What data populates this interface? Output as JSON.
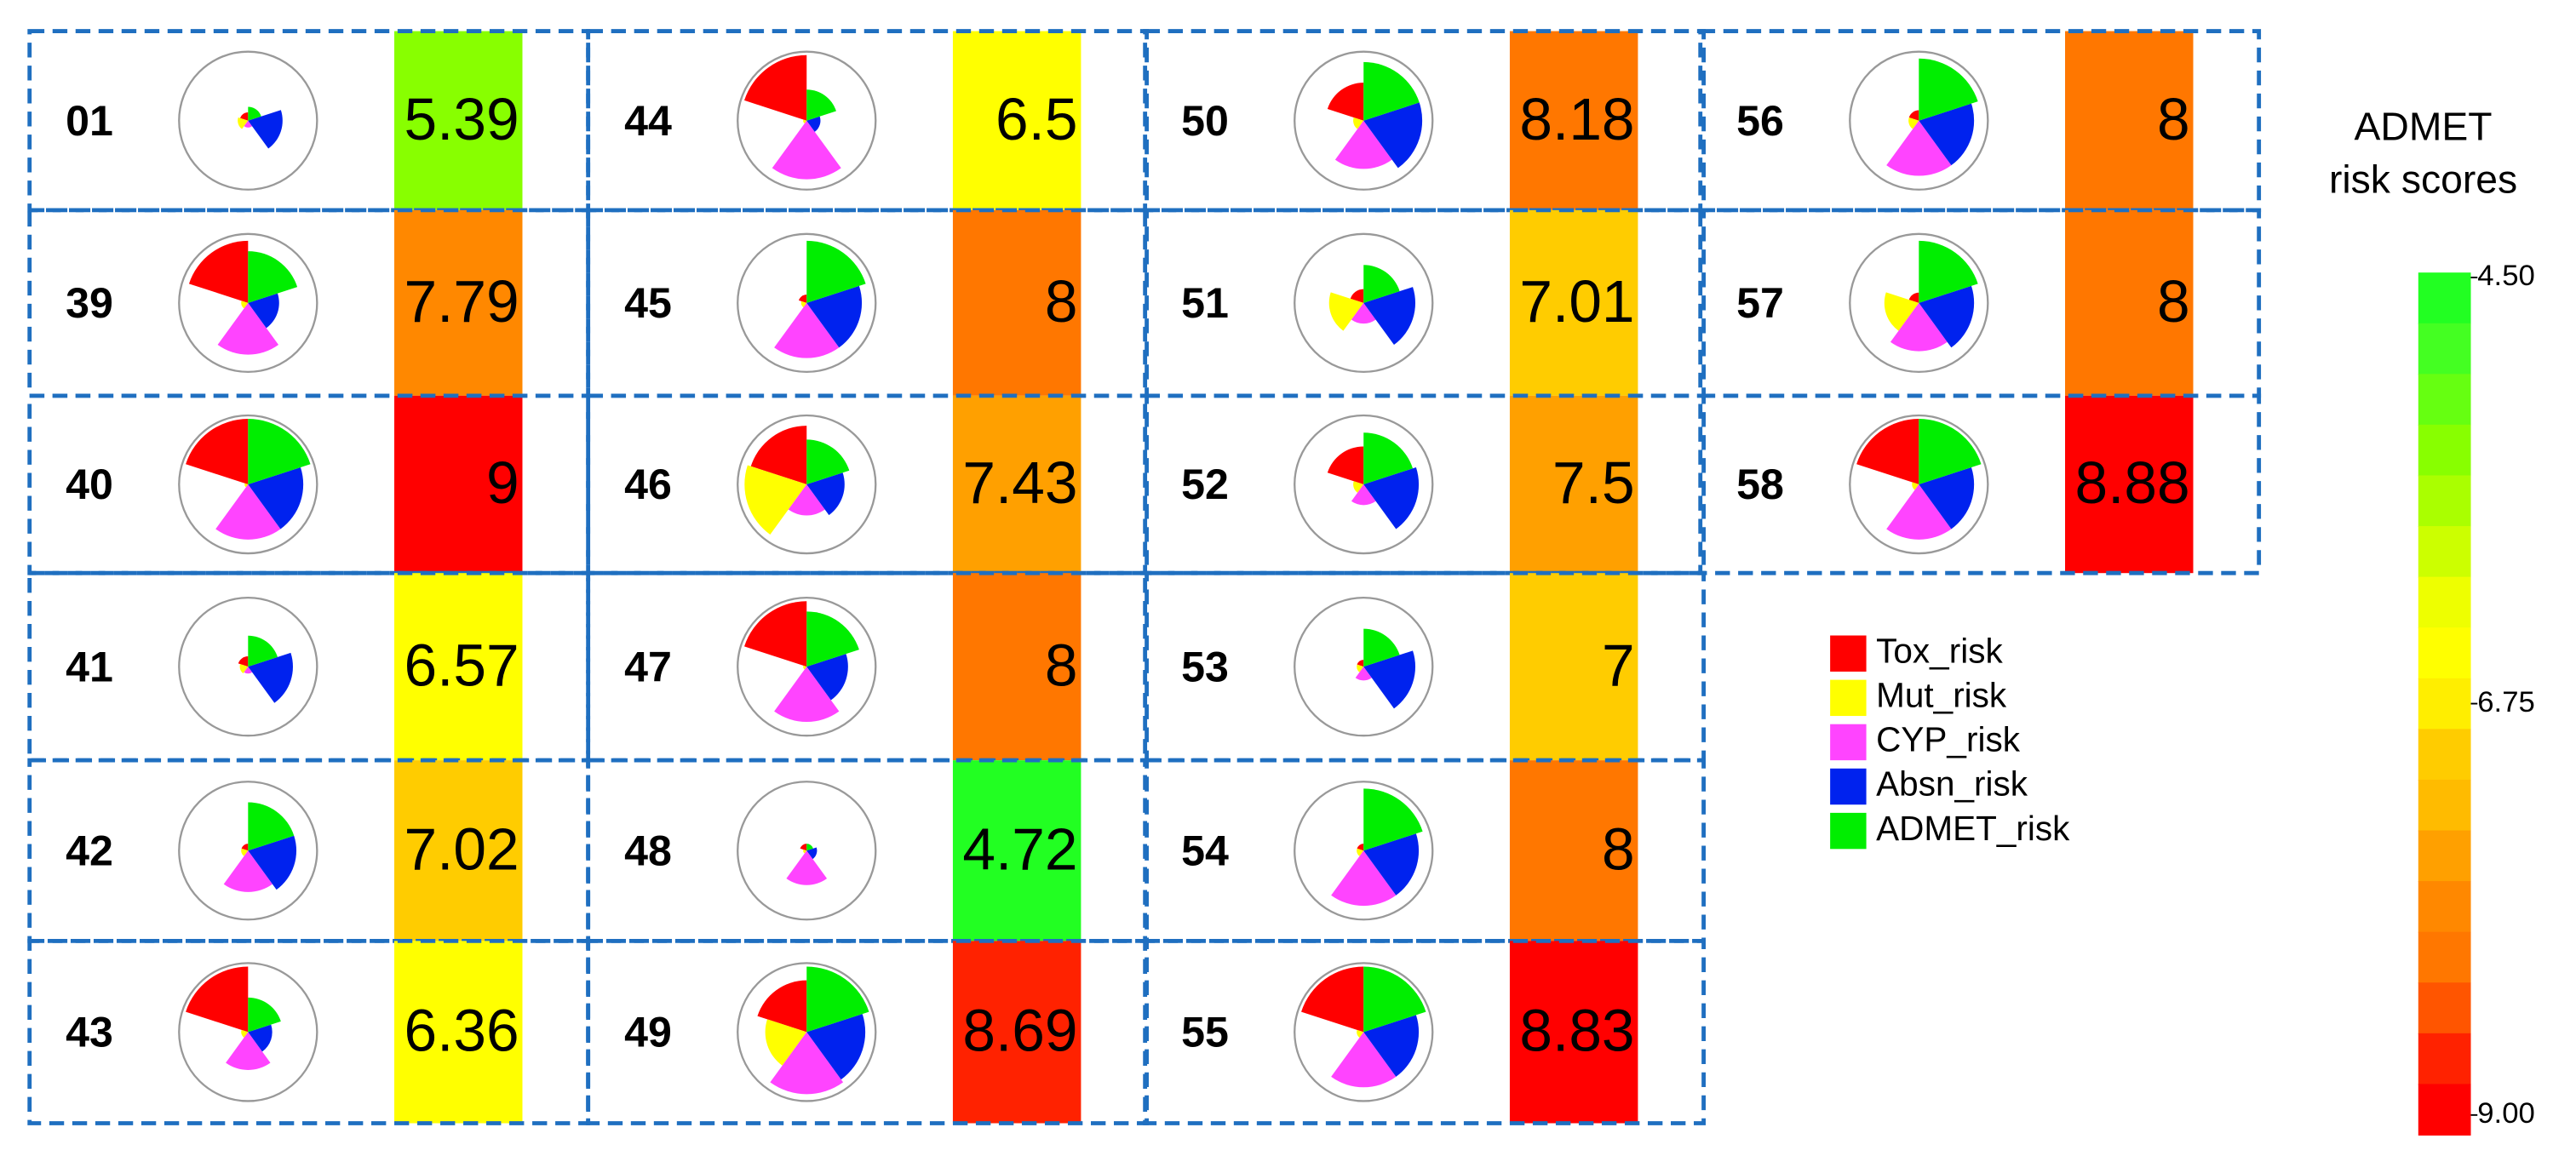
{
  "compounds": [
    {
      "id": "01",
      "score": 5.39,
      "risks": [
        0.12,
        0.15,
        0.1,
        0.5,
        0.2
      ]
    },
    {
      "id": "39",
      "score": 7.79,
      "risks": [
        0.9,
        0.1,
        0.75,
        0.45,
        0.75
      ]
    },
    {
      "id": "40",
      "score": 9,
      "risks": [
        0.95,
        0.05,
        0.8,
        0.8,
        0.95
      ]
    },
    {
      "id": "41",
      "score": 6.57,
      "risks": [
        0.15,
        0.12,
        0.1,
        0.65,
        0.45
      ]
    },
    {
      "id": "42",
      "score": 7.02,
      "risks": [
        0.1,
        0.1,
        0.6,
        0.7,
        0.7
      ]
    },
    {
      "id": "43",
      "score": 6.36,
      "risks": [
        0.95,
        0.1,
        0.55,
        0.35,
        0.5
      ]
    },
    {
      "id": "44",
      "score": 6.5,
      "risks": [
        0.95,
        0.05,
        0.85,
        0.2,
        0.45
      ]
    },
    {
      "id": "45",
      "score": 8,
      "risks": [
        0.12,
        0.08,
        0.8,
        0.8,
        0.9
      ]
    },
    {
      "id": "46",
      "score": 7.43,
      "risks": [
        0.85,
        0.9,
        0.45,
        0.55,
        0.65
      ]
    },
    {
      "id": "47",
      "score": 8,
      "risks": [
        0.95,
        0.05,
        0.8,
        0.6,
        0.8
      ]
    },
    {
      "id": "48",
      "score": 4.72,
      "risks": [
        0.1,
        0.05,
        0.5,
        0.15,
        0.1
      ]
    },
    {
      "id": "49",
      "score": 8.69,
      "risks": [
        0.75,
        0.6,
        0.9,
        0.85,
        0.95
      ]
    },
    {
      "id": "50",
      "score": 8.18,
      "risks": [
        0.55,
        0.15,
        0.7,
        0.85,
        0.85
      ]
    },
    {
      "id": "51",
      "score": 7.01,
      "risks": [
        0.2,
        0.5,
        0.3,
        0.75,
        0.55
      ]
    },
    {
      "id": "52",
      "score": 7.5,
      "risks": [
        0.55,
        0.15,
        0.3,
        0.8,
        0.75
      ]
    },
    {
      "id": "53",
      "score": 7,
      "risks": [
        0.1,
        0.1,
        0.2,
        0.75,
        0.55
      ]
    },
    {
      "id": "54",
      "score": 8,
      "risks": [
        0.1,
        0.1,
        0.8,
        0.8,
        0.9
      ]
    },
    {
      "id": "55",
      "score": 8.83,
      "risks": [
        0.95,
        0.1,
        0.8,
        0.8,
        0.95
      ]
    },
    {
      "id": "56",
      "score": 8,
      "risks": [
        0.15,
        0.15,
        0.8,
        0.8,
        0.9
      ]
    },
    {
      "id": "57",
      "score": 8,
      "risks": [
        0.15,
        0.5,
        0.7,
        0.8,
        0.9
      ]
    },
    {
      "id": "58",
      "score": 8.88,
      "risks": [
        0.95,
        0.1,
        0.8,
        0.8,
        0.95
      ]
    }
  ],
  "rlim": [
    0,
    1
  ],
  "risk_types": [
    {
      "name": "Tox_risk",
      "color": "#ff0000"
    },
    {
      "name": "Mut_risk",
      "color": "#ffff00"
    },
    {
      "name": "CYP_risk",
      "color": "#ff44ff"
    },
    {
      "name": "Absn_risk",
      "color": "#0022ee"
    },
    {
      "name": "ADMET_risk",
      "color": "#00ee00"
    }
  ],
  "colorbar": {
    "title": [
      "ADMET",
      "risk scores"
    ],
    "lim": [
      4.5,
      9
    ],
    "ticks": [
      {
        "value": 4.5,
        "label": "4.50"
      },
      {
        "value": 6.75,
        "label": "6.75"
      },
      {
        "value": 9,
        "label": "9.00"
      }
    ],
    "colors": [
      "#22ff22",
      "#44ff22",
      "#66ff11",
      "#88ff00",
      "#aaff00",
      "#ccff00",
      "#eeff00",
      "#ffff00",
      "#ffee00",
      "#ffcc00",
      "#ffbb00",
      "#ffa000",
      "#ff8800",
      "#ff7700",
      "#ff5500",
      "#ff2200",
      "#ff0000"
    ]
  }
}
